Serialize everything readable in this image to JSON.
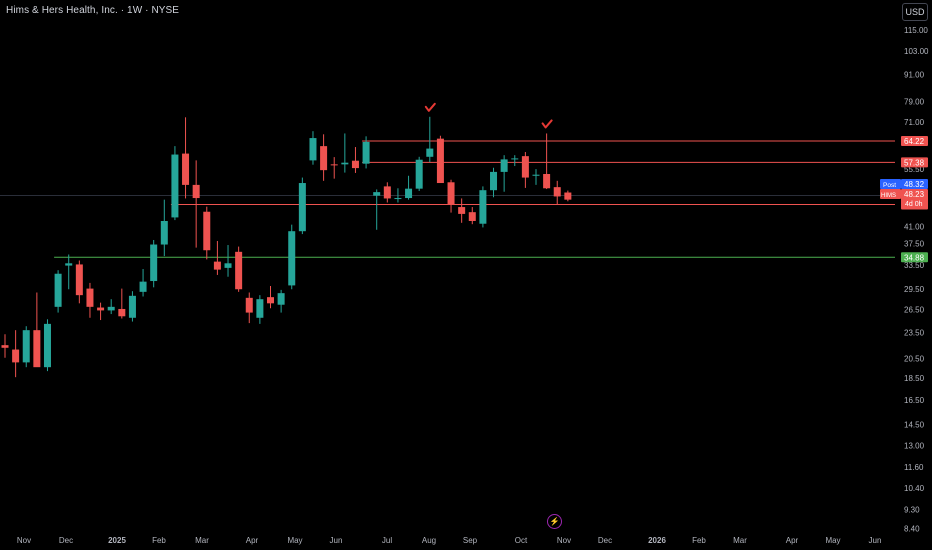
{
  "header": {
    "title": "Hims & Hers Health, Inc. · 1W · NYSE",
    "currency": "USD",
    "lightning_icon": "lightning-icon"
  },
  "colors": {
    "background": "#000000",
    "up": "#26a69a",
    "down": "#ef5350",
    "resistance_line": "#ef5350",
    "support_line": "#4caf50",
    "marker": "#e53935",
    "axis_text": "#b2b5be",
    "post_label": "#2962ff"
  },
  "chart_data": {
    "type": "candlestick",
    "timeframe": "1W",
    "x_tick_labels": [
      "Nov",
      "Dec",
      "2025",
      "Feb",
      "Mar",
      "Apr",
      "May",
      "Jun",
      "Jul",
      "Aug",
      "Sep",
      "Oct",
      "Nov",
      "Dec",
      "2026",
      "Feb",
      "Mar",
      "Apr",
      "May",
      "Jun"
    ],
    "y_scale": "log",
    "y_tick_labels": [
      "115.00",
      "103.00",
      "91.00",
      "79.00",
      "71.00",
      "55.50",
      "41.00",
      "37.50",
      "33.50",
      "29.50",
      "26.50",
      "23.50",
      "20.50",
      "18.50",
      "16.50",
      "14.50",
      "13.00",
      "11.60",
      "10.40",
      "9.30",
      "8.40"
    ],
    "ylim": [
      8.0,
      125.0
    ],
    "candles": [
      {
        "o": 22.0,
        "h": 23.3,
        "l": 20.6,
        "c": 21.7
      },
      {
        "o": 21.5,
        "h": 23.8,
        "l": 18.6,
        "c": 20.1
      },
      {
        "o": 20.1,
        "h": 24.3,
        "l": 19.6,
        "c": 23.8
      },
      {
        "o": 23.8,
        "h": 29.0,
        "l": 20.1,
        "c": 19.6
      },
      {
        "o": 19.6,
        "h": 25.2,
        "l": 19.2,
        "c": 24.6
      },
      {
        "o": 26.9,
        "h": 32.6,
        "l": 26.1,
        "c": 32.0
      },
      {
        "o": 33.4,
        "h": 35.4,
        "l": 29.5,
        "c": 33.8
      },
      {
        "o": 33.6,
        "h": 34.3,
        "l": 27.4,
        "c": 28.6
      },
      {
        "o": 29.6,
        "h": 30.5,
        "l": 25.4,
        "c": 26.9
      },
      {
        "o": 26.8,
        "h": 27.5,
        "l": 25.1,
        "c": 26.4
      },
      {
        "o": 26.4,
        "h": 28.0,
        "l": 25.9,
        "c": 26.9
      },
      {
        "o": 26.6,
        "h": 29.6,
        "l": 25.3,
        "c": 25.6
      },
      {
        "o": 25.4,
        "h": 29.2,
        "l": 24.9,
        "c": 28.5
      },
      {
        "o": 29.1,
        "h": 32.8,
        "l": 28.4,
        "c": 30.7
      },
      {
        "o": 30.8,
        "h": 38.2,
        "l": 29.8,
        "c": 37.3
      },
      {
        "o": 37.3,
        "h": 47.2,
        "l": 35.1,
        "c": 42.2
      },
      {
        "o": 43.0,
        "h": 62.5,
        "l": 42.4,
        "c": 59.8
      },
      {
        "o": 60.1,
        "h": 72.7,
        "l": 47.5,
        "c": 51.0
      },
      {
        "o": 51.0,
        "h": 58.0,
        "l": 36.7,
        "c": 47.6
      },
      {
        "o": 44.3,
        "h": 45.5,
        "l": 34.5,
        "c": 36.2
      },
      {
        "o": 34.1,
        "h": 38.0,
        "l": 31.8,
        "c": 32.7
      },
      {
        "o": 33.0,
        "h": 37.2,
        "l": 31.5,
        "c": 33.8
      },
      {
        "o": 35.9,
        "h": 36.9,
        "l": 29.1,
        "c": 29.5
      },
      {
        "o": 28.2,
        "h": 29.0,
        "l": 24.7,
        "c": 26.1
      },
      {
        "o": 25.4,
        "h": 28.6,
        "l": 24.6,
        "c": 28.0
      },
      {
        "o": 28.3,
        "h": 30.0,
        "l": 26.7,
        "c": 27.4
      },
      {
        "o": 27.2,
        "h": 29.4,
        "l": 26.1,
        "c": 28.9
      },
      {
        "o": 30.1,
        "h": 41.4,
        "l": 29.5,
        "c": 40.0
      },
      {
        "o": 40.0,
        "h": 53.0,
        "l": 39.4,
        "c": 51.5
      },
      {
        "o": 58.0,
        "h": 67.6,
        "l": 56.7,
        "c": 65.2
      },
      {
        "o": 62.5,
        "h": 66.5,
        "l": 52.1,
        "c": 55.1
      },
      {
        "o": 56.8,
        "h": 59.0,
        "l": 52.7,
        "c": 56.5
      },
      {
        "o": 56.8,
        "h": 66.8,
        "l": 54.4,
        "c": 57.3
      },
      {
        "o": 57.9,
        "h": 62.2,
        "l": 54.3,
        "c": 55.7
      },
      {
        "o": 57.0,
        "h": 65.8,
        "l": 55.6,
        "c": 63.9
      },
      {
        "o": 48.2,
        "h": 49.8,
        "l": 40.3,
        "c": 49.1
      },
      {
        "o": 50.6,
        "h": 51.7,
        "l": 46.5,
        "c": 47.5
      },
      {
        "o": 47.4,
        "h": 50.1,
        "l": 46.5,
        "c": 47.6
      },
      {
        "o": 47.6,
        "h": 53.5,
        "l": 47.2,
        "c": 50.0
      },
      {
        "o": 50.0,
        "h": 59.1,
        "l": 49.4,
        "c": 58.2
      },
      {
        "o": 59.1,
        "h": 72.9,
        "l": 57.5,
        "c": 61.7
      },
      {
        "o": 65.0,
        "h": 66.0,
        "l": 51.7,
        "c": 51.5
      },
      {
        "o": 51.7,
        "h": 52.4,
        "l": 44.1,
        "c": 45.9
      },
      {
        "o": 45.4,
        "h": 47.5,
        "l": 41.8,
        "c": 43.8
      },
      {
        "o": 44.2,
        "h": 45.4,
        "l": 41.5,
        "c": 42.2
      },
      {
        "o": 41.6,
        "h": 50.6,
        "l": 40.8,
        "c": 49.6
      },
      {
        "o": 49.6,
        "h": 55.8,
        "l": 47.8,
        "c": 54.6
      },
      {
        "o": 54.6,
        "h": 59.6,
        "l": 49.2,
        "c": 58.3
      },
      {
        "o": 58.3,
        "h": 59.6,
        "l": 56.3,
        "c": 58.6
      },
      {
        "o": 59.3,
        "h": 60.6,
        "l": 50.2,
        "c": 53.0
      },
      {
        "o": 53.5,
        "h": 55.4,
        "l": 51.0,
        "c": 53.8
      },
      {
        "o": 54.0,
        "h": 66.8,
        "l": 49.9,
        "c": 50.1
      },
      {
        "o": 50.4,
        "h": 52.1,
        "l": 46.0,
        "c": 48.0
      },
      {
        "o": 49.0,
        "h": 49.5,
        "l": 46.8,
        "c": 47.2
      }
    ],
    "horizontal_levels": [
      {
        "value": 64.22,
        "label": "64.22",
        "color": "#ef5350",
        "start_index": 34
      },
      {
        "value": 57.38,
        "label": "57.38",
        "color": "#ef5350",
        "start_index": 34
      },
      {
        "value": 46.01,
        "label": "46.01",
        "color": "#ef5350",
        "start_index": 16
      },
      {
        "value": 34.88,
        "label": "34.88",
        "color": "#4caf50",
        "start_index": 5
      }
    ],
    "price_labels": [
      {
        "name": "Post",
        "value": "48.32",
        "color": "#2962ff"
      },
      {
        "name": "HIMS",
        "value": "48.23",
        "color": "#ef5350",
        "countdown": "4d 0h"
      }
    ],
    "markers": [
      {
        "type": "check",
        "candle_index": 40,
        "color": "#e53935"
      },
      {
        "type": "check",
        "candle_index": 51,
        "color": "#e53935"
      }
    ]
  }
}
